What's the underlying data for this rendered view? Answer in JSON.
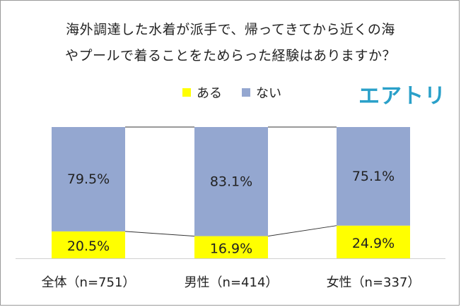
{
  "title_lines": [
    "海外調達した水着が派手で、帰ってきてから近くの海",
    "やプールで着ることをためらった経験はありますか？"
  ],
  "logo_text": "エアトリ",
  "colors": {
    "yes": "#ffff00",
    "no": "#94a7d0",
    "connector": "#333333",
    "logo": "#2aa0c9"
  },
  "chart_data": {
    "type": "bar",
    "stacked": true,
    "percent": true,
    "categories": [
      "全体（n=751）",
      "男性（n=414）",
      "女性（n=337）"
    ],
    "series": [
      {
        "name": "ある",
        "values": [
          20.5,
          16.9,
          24.9
        ],
        "labels": [
          "20.5%",
          "16.9%",
          "24.9%"
        ]
      },
      {
        "name": "ない",
        "values": [
          79.5,
          83.1,
          75.1
        ],
        "labels": [
          "79.5%",
          "83.1%",
          "75.1%"
        ]
      }
    ],
    "ylim": [
      0,
      100
    ],
    "legend": "top",
    "series_lines": true
  }
}
